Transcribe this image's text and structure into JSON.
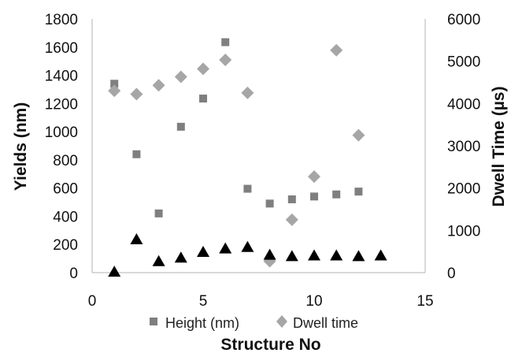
{
  "chart_data": {
    "type": "scatter",
    "title": "",
    "xlabel": "Structure No",
    "ylabel": "Yields (nm)",
    "y2label": "Dwell Time (µs)",
    "xlim": [
      0,
      15
    ],
    "ylim": [
      0,
      1800
    ],
    "y2lim": [
      0,
      6000
    ],
    "xticks": [
      0,
      5,
      10,
      15
    ],
    "yticks": [
      0,
      200,
      400,
      600,
      800,
      1000,
      1200,
      1400,
      1600,
      1800
    ],
    "y2ticks": [
      0,
      1000,
      2000,
      3000,
      4000,
      5000,
      6000
    ],
    "grid": false,
    "legend_position": "bottom",
    "series": [
      {
        "name": "Height (nm)",
        "axis": "left",
        "marker": "square",
        "color": "#7f7f7f",
        "x": [
          1,
          2,
          3,
          4,
          5,
          6,
          7,
          8,
          9,
          10,
          11,
          12
        ],
        "y": [
          1340,
          840,
          420,
          1035,
          1235,
          1635,
          595,
          490,
          520,
          540,
          555,
          575
        ]
      },
      {
        "name": "Dwell time",
        "axis": "right",
        "marker": "diamond",
        "color": "#a6a6a6",
        "x": [
          1,
          2,
          3,
          4,
          5,
          6,
          7,
          8,
          9,
          10,
          11,
          12
        ],
        "y": [
          4300,
          4220,
          4430,
          4630,
          4820,
          5030,
          4250,
          270,
          1250,
          2270,
          5260,
          3250
        ]
      },
      {
        "marker": "triangle",
        "axis": "left",
        "color": "#000000",
        "x": [
          1,
          2,
          3,
          4,
          5,
          6,
          7,
          8,
          9,
          10,
          11,
          12,
          13
        ],
        "y": [
          5,
          235,
          80,
          105,
          145,
          170,
          180,
          125,
          115,
          120,
          120,
          115,
          120
        ]
      }
    ]
  }
}
